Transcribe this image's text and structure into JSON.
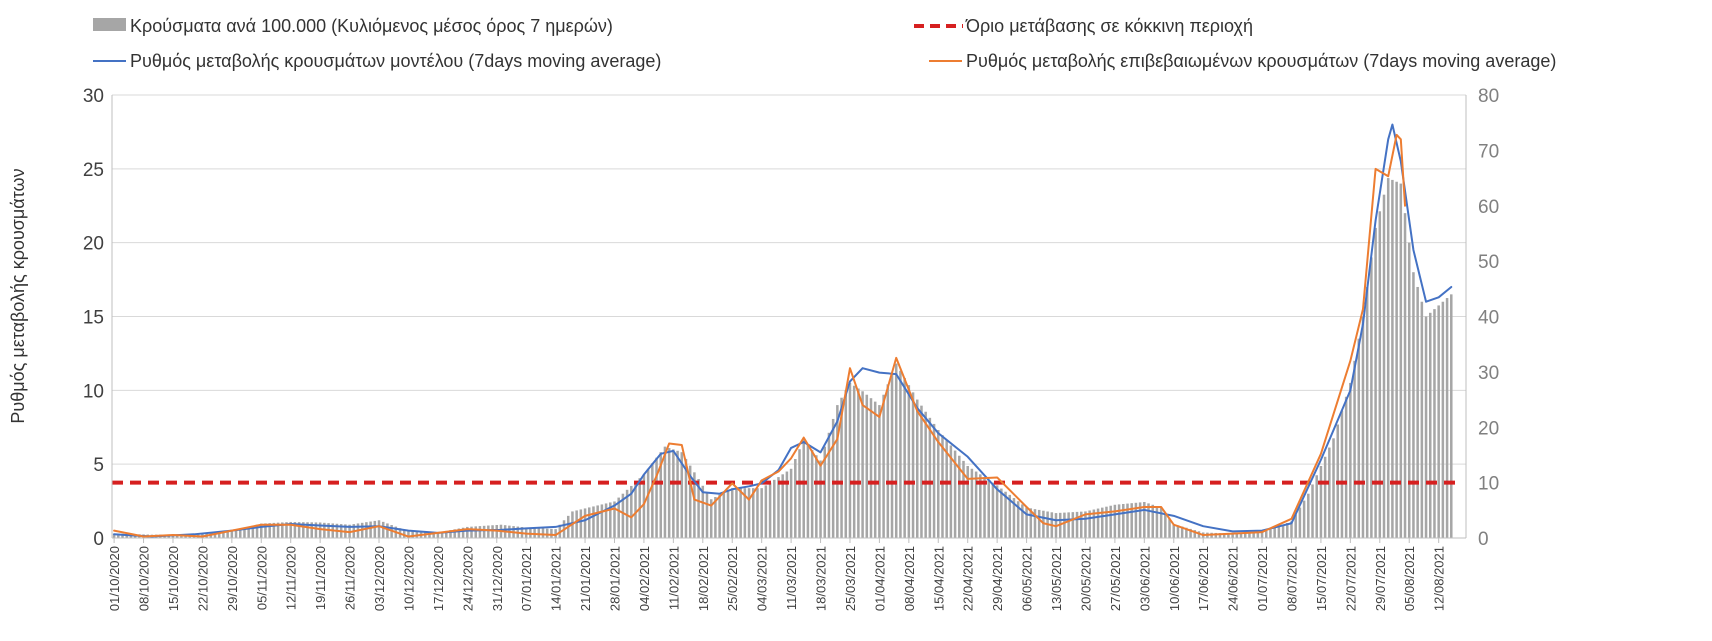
{
  "chart_data": {
    "type": "bar+line",
    "ylabel_left": "Ρυθμός μεταβολής κρουσμάτων",
    "y_left": {
      "min": 0,
      "max": 30,
      "ticks": [
        0,
        5,
        10,
        15,
        20,
        25,
        30
      ]
    },
    "y_right": {
      "min": 0,
      "max": 80,
      "ticks": [
        0,
        10,
        20,
        30,
        40,
        50,
        60,
        70,
        80
      ]
    },
    "grid": "horizontal",
    "legend_position": "top",
    "x_tick_labels": [
      "01/10/2020",
      "08/10/2020",
      "15/10/2020",
      "22/10/2020",
      "29/10/2020",
      "05/11/2020",
      "12/11/2020",
      "19/11/2020",
      "26/11/2020",
      "03/12/2020",
      "10/12/2020",
      "17/12/2020",
      "24/12/2020",
      "31/12/2020",
      "07/01/2021",
      "14/01/2021",
      "21/01/2021",
      "28/01/2021",
      "04/02/2021",
      "11/02/2021",
      "18/02/2021",
      "25/02/2021",
      "04/03/2021",
      "11/03/2021",
      "18/03/2021",
      "25/03/2021",
      "01/04/2021",
      "08/04/2021",
      "15/04/2021",
      "22/04/2021",
      "29/04/2021",
      "06/05/2021",
      "13/05/2021",
      "20/05/2021",
      "27/05/2021",
      "03/06/2021",
      "10/06/2021",
      "17/06/2021",
      "24/06/2021",
      "01/07/2021",
      "08/07/2021",
      "15/07/2021",
      "22/07/2021",
      "29/07/2021",
      "05/08/2021",
      "12/08/2021"
    ],
    "threshold": {
      "name": "Όριο μετάβασης σε κόκκινη περιοχή",
      "value": 3.75,
      "axis": "left",
      "color": "#d62020"
    },
    "series": [
      {
        "name": "Κρούσματα ανά 100.000 (Κυλιόμενος μέσος όρος 7 ημερών)",
        "type": "bar",
        "axis": "right",
        "color": "#a6a6a6",
        "points": [
          [
            "2020-10-01",
            0.8
          ],
          [
            "2020-10-10",
            0.6
          ],
          [
            "2020-10-20",
            0.7
          ],
          [
            "2020-10-29",
            1.2
          ],
          [
            "2020-11-05",
            2.6
          ],
          [
            "2020-11-12",
            2.9
          ],
          [
            "2020-11-19",
            2.8
          ],
          [
            "2020-11-26",
            2.4
          ],
          [
            "2020-12-03",
            3.2
          ],
          [
            "2020-12-10",
            1.2
          ],
          [
            "2020-12-17",
            1.0
          ],
          [
            "2020-12-24",
            2.0
          ],
          [
            "2021-01-01",
            2.4
          ],
          [
            "2021-01-07",
            1.9
          ],
          [
            "2021-01-14",
            1.6
          ],
          [
            "2021-01-18",
            4.8
          ],
          [
            "2021-01-28",
            6.6
          ],
          [
            "2021-02-04",
            11.5
          ],
          [
            "2021-02-09",
            16.5
          ],
          [
            "2021-02-13",
            15.5
          ],
          [
            "2021-02-20",
            7.0
          ],
          [
            "2021-02-25",
            9.0
          ],
          [
            "2021-03-04",
            9.0
          ],
          [
            "2021-03-11",
            12.5
          ],
          [
            "2021-03-14",
            17.8
          ],
          [
            "2021-03-18",
            14.0
          ],
          [
            "2021-03-22",
            24.0
          ],
          [
            "2021-03-25",
            28.0
          ],
          [
            "2021-03-28",
            26.5
          ],
          [
            "2021-04-01",
            24.0
          ],
          [
            "2021-04-05",
            31.5
          ],
          [
            "2021-04-10",
            25.0
          ],
          [
            "2021-04-15",
            19.5
          ],
          [
            "2021-04-22",
            13.0
          ],
          [
            "2021-04-29",
            9.5
          ],
          [
            "2021-05-06",
            5.5
          ],
          [
            "2021-05-13",
            4.5
          ],
          [
            "2021-05-20",
            4.8
          ],
          [
            "2021-05-27",
            6.0
          ],
          [
            "2021-06-03",
            6.5
          ],
          [
            "2021-06-07",
            5.5
          ],
          [
            "2021-06-10",
            2.5
          ],
          [
            "2021-06-17",
            1.0
          ],
          [
            "2021-06-24",
            0.8
          ],
          [
            "2021-07-01",
            1.0
          ],
          [
            "2021-07-08",
            3.0
          ],
          [
            "2021-07-12",
            8.0
          ],
          [
            "2021-07-15",
            13.0
          ],
          [
            "2021-07-18",
            18.0
          ],
          [
            "2021-07-22",
            28.0
          ],
          [
            "2021-07-25",
            40.0
          ],
          [
            "2021-07-28",
            56.0
          ],
          [
            "2021-07-31",
            65.0
          ],
          [
            "2021-08-03",
            64.0
          ],
          [
            "2021-08-06",
            48.0
          ],
          [
            "2021-08-09",
            40.0
          ],
          [
            "2021-08-12",
            42.0
          ],
          [
            "2021-08-15",
            44.0
          ]
        ]
      },
      {
        "name": "Ρυθμός μεταβολής κρουσμάτων μοντέλου (7days moving average)",
        "type": "line",
        "axis": "left",
        "color": "#4472c4",
        "points": [
          [
            "2020-10-01",
            0.25
          ],
          [
            "2020-10-10",
            0.1
          ],
          [
            "2020-10-20",
            0.25
          ],
          [
            "2020-10-29",
            0.5
          ],
          [
            "2020-11-05",
            0.75
          ],
          [
            "2020-11-12",
            0.95
          ],
          [
            "2020-11-19",
            0.85
          ],
          [
            "2020-11-26",
            0.75
          ],
          [
            "2020-12-03",
            0.8
          ],
          [
            "2020-12-10",
            0.5
          ],
          [
            "2020-12-17",
            0.35
          ],
          [
            "2020-12-24",
            0.5
          ],
          [
            "2021-01-01",
            0.55
          ],
          [
            "2021-01-07",
            0.65
          ],
          [
            "2021-01-14",
            0.75
          ],
          [
            "2021-01-21",
            1.2
          ],
          [
            "2021-01-28",
            2.2
          ],
          [
            "2021-02-01",
            3.0
          ],
          [
            "2021-02-04",
            4.3
          ],
          [
            "2021-02-08",
            5.7
          ],
          [
            "2021-02-11",
            5.9
          ],
          [
            "2021-02-15",
            4.2
          ],
          [
            "2021-02-18",
            3.1
          ],
          [
            "2021-02-22",
            3.0
          ],
          [
            "2021-02-25",
            3.3
          ],
          [
            "2021-03-01",
            3.5
          ],
          [
            "2021-03-04",
            3.7
          ],
          [
            "2021-03-08",
            4.6
          ],
          [
            "2021-03-11",
            6.1
          ],
          [
            "2021-03-14",
            6.5
          ],
          [
            "2021-03-18",
            5.8
          ],
          [
            "2021-03-22",
            7.9
          ],
          [
            "2021-03-25",
            10.6
          ],
          [
            "2021-03-28",
            11.5
          ],
          [
            "2021-04-01",
            11.2
          ],
          [
            "2021-04-05",
            11.1
          ],
          [
            "2021-04-10",
            8.8
          ],
          [
            "2021-04-15",
            7.1
          ],
          [
            "2021-04-22",
            5.5
          ],
          [
            "2021-04-29",
            3.3
          ],
          [
            "2021-05-06",
            1.6
          ],
          [
            "2021-05-13",
            1.2
          ],
          [
            "2021-05-20",
            1.3
          ],
          [
            "2021-05-27",
            1.6
          ],
          [
            "2021-06-03",
            1.9
          ],
          [
            "2021-06-10",
            1.5
          ],
          [
            "2021-06-17",
            0.8
          ],
          [
            "2021-06-24",
            0.45
          ],
          [
            "2021-07-01",
            0.5
          ],
          [
            "2021-07-08",
            1.0
          ],
          [
            "2021-07-15",
            5.3
          ],
          [
            "2021-07-22",
            10.0
          ],
          [
            "2021-07-25",
            14.5
          ],
          [
            "2021-07-28",
            21.5
          ],
          [
            "2021-07-31",
            27.0
          ],
          [
            "2021-08-01",
            28.0
          ],
          [
            "2021-08-03",
            25.5
          ],
          [
            "2021-08-06",
            19.5
          ],
          [
            "2021-08-09",
            16.0
          ],
          [
            "2021-08-12",
            16.3
          ],
          [
            "2021-08-15",
            17.0
          ]
        ]
      },
      {
        "name": "Ρυθμός μεταβολής επιβεβαιωμένων κρουσμάτων (7days moving average)",
        "type": "line",
        "axis": "left",
        "color": "#ed7d31",
        "points": [
          [
            "2020-10-01",
            0.5
          ],
          [
            "2020-10-08",
            0.1
          ],
          [
            "2020-10-15",
            0.2
          ],
          [
            "2020-10-22",
            0.1
          ],
          [
            "2020-10-29",
            0.5
          ],
          [
            "2020-11-05",
            0.9
          ],
          [
            "2020-11-12",
            0.9
          ],
          [
            "2020-11-19",
            0.6
          ],
          [
            "2020-11-26",
            0.4
          ],
          [
            "2020-12-03",
            0.8
          ],
          [
            "2020-12-10",
            0.1
          ],
          [
            "2020-12-17",
            0.35
          ],
          [
            "2020-12-24",
            0.6
          ],
          [
            "2020-12-31",
            0.5
          ],
          [
            "2021-01-07",
            0.3
          ],
          [
            "2021-01-14",
            0.2
          ],
          [
            "2021-01-21",
            1.5
          ],
          [
            "2021-01-28",
            2.0
          ],
          [
            "2021-02-01",
            1.4
          ],
          [
            "2021-02-04",
            2.3
          ],
          [
            "2021-02-07",
            4.2
          ],
          [
            "2021-02-10",
            6.4
          ],
          [
            "2021-02-13",
            6.3
          ],
          [
            "2021-02-16",
            2.6
          ],
          [
            "2021-02-20",
            2.2
          ],
          [
            "2021-02-25",
            3.7
          ],
          [
            "2021-03-01",
            2.6
          ],
          [
            "2021-03-04",
            3.9
          ],
          [
            "2021-03-08",
            4.5
          ],
          [
            "2021-03-11",
            5.4
          ],
          [
            "2021-03-14",
            6.8
          ],
          [
            "2021-03-18",
            4.9
          ],
          [
            "2021-03-22",
            6.7
          ],
          [
            "2021-03-25",
            11.5
          ],
          [
            "2021-03-28",
            9.0
          ],
          [
            "2021-04-01",
            8.2
          ],
          [
            "2021-04-05",
            12.2
          ],
          [
            "2021-04-10",
            8.6
          ],
          [
            "2021-04-15",
            6.5
          ],
          [
            "2021-04-22",
            4.0
          ],
          [
            "2021-04-29",
            4.1
          ],
          [
            "2021-05-06",
            2.1
          ],
          [
            "2021-05-10",
            1.0
          ],
          [
            "2021-05-13",
            0.8
          ],
          [
            "2021-05-20",
            1.6
          ],
          [
            "2021-05-27",
            1.8
          ],
          [
            "2021-06-03",
            2.1
          ],
          [
            "2021-06-07",
            2.1
          ],
          [
            "2021-06-10",
            0.9
          ],
          [
            "2021-06-17",
            0.2
          ],
          [
            "2021-06-24",
            0.3
          ],
          [
            "2021-07-01",
            0.4
          ],
          [
            "2021-07-08",
            1.3
          ],
          [
            "2021-07-15",
            5.7
          ],
          [
            "2021-07-22",
            12.0
          ],
          [
            "2021-07-25",
            15.5
          ],
          [
            "2021-07-28",
            25.0
          ],
          [
            "2021-07-31",
            24.5
          ],
          [
            "2021-08-02",
            27.3
          ],
          [
            "2021-08-03",
            27.0
          ],
          [
            "2021-08-04",
            22.5
          ]
        ]
      }
    ]
  }
}
